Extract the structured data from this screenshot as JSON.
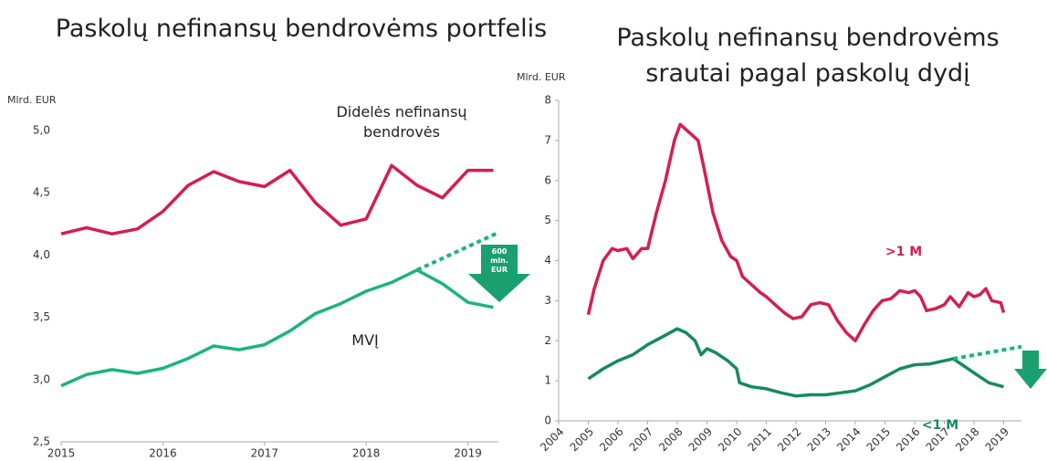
{
  "chart_data": [
    {
      "type": "line",
      "title": "Paskolų nefinansų bendrovėms portfelis",
      "y_label": "Mlrd. EUR",
      "xlim": [
        2015,
        2019.3
      ],
      "xticks": [
        2015,
        2016,
        2017,
        2018,
        2019
      ],
      "ylim": [
        2.5,
        5.0
      ],
      "yticks": [
        {
          "value": 2.5,
          "label": "2,5"
        },
        {
          "value": 3.0,
          "label": "3,0"
        },
        {
          "value": 3.5,
          "label": "3,5"
        },
        {
          "value": 4.0,
          "label": "4,0"
        },
        {
          "value": 4.5,
          "label": "4,5"
        },
        {
          "value": 5.0,
          "label": "5,0"
        }
      ],
      "series": [
        {
          "name": "Didelės nefinansų bendrovės",
          "color": "#d61c4e",
          "x": [
            2015,
            2015.25,
            2015.5,
            2015.75,
            2016,
            2016.25,
            2016.5,
            2016.75,
            2017,
            2017.25,
            2017.5,
            2017.75,
            2018,
            2018.25,
            2018.5,
            2018.75,
            2019,
            2019.25
          ],
          "values": [
            4.17,
            4.22,
            4.17,
            4.21,
            4.35,
            4.56,
            4.67,
            4.59,
            4.55,
            4.68,
            4.42,
            4.24,
            4.29,
            4.72,
            4.56,
            4.46,
            4.68,
            4.68
          ]
        },
        {
          "name": "MVĮ",
          "color": "#1db37e",
          "x": [
            2015,
            2015.25,
            2015.5,
            2015.75,
            2016,
            2016.25,
            2016.5,
            2016.75,
            2017,
            2017.25,
            2017.5,
            2017.75,
            2018,
            2018.25,
            2018.5,
            2018.75,
            2019,
            2019.25
          ],
          "values": [
            2.95,
            3.04,
            3.08,
            3.05,
            3.09,
            3.17,
            3.27,
            3.24,
            3.28,
            3.39,
            3.53,
            3.61,
            3.71,
            3.78,
            3.88,
            3.77,
            3.62,
            3.58
          ]
        },
        {
          "color": "#1db37e",
          "dashed": true,
          "x": [
            2018.5,
            2019.3
          ],
          "values": [
            3.88,
            4.18
          ]
        }
      ],
      "annotations": [
        "600 mln. EUR"
      ]
    },
    {
      "type": "line",
      "title": "Paskolų nefinansų bendrovėms srautai pagal paskolų dydį",
      "y_label": "Mlrd. EUR",
      "xlim": [
        2004,
        2019.6
      ],
      "xticks": [
        2004,
        2005,
        2006,
        2007,
        2008,
        2009,
        2010,
        2011,
        2012,
        2013,
        2014,
        2015,
        2016,
        2017,
        2018,
        2019
      ],
      "ylim": [
        0,
        8
      ],
      "yticks": [
        0,
        1,
        2,
        3,
        4,
        5,
        6,
        7,
        8
      ],
      "series": [
        {
          "name": ">1 M",
          "color": "#d2204f",
          "x": [
            2005.0,
            2005.2,
            2005.5,
            2005.8,
            2006.0,
            2006.3,
            2006.5,
            2006.8,
            2007.0,
            2007.3,
            2007.6,
            2007.9,
            2008.1,
            2008.4,
            2008.7,
            2008.9,
            2009.2,
            2009.5,
            2009.8,
            2010.0,
            2010.2,
            2010.5,
            2010.8,
            2011.0,
            2011.3,
            2011.6,
            2011.9,
            2012.2,
            2012.5,
            2012.8,
            2013.1,
            2013.4,
            2013.7,
            2014.0,
            2014.3,
            2014.6,
            2014.9,
            2015.2,
            2015.5,
            2015.8,
            2016.0,
            2016.2,
            2016.4,
            2016.7,
            2017.0,
            2017.2,
            2017.5,
            2017.8,
            2018.0,
            2018.2,
            2018.4,
            2018.6,
            2018.9,
            2019.0
          ],
          "values": [
            2.65,
            3.3,
            4.0,
            4.3,
            4.25,
            4.3,
            4.05,
            4.3,
            4.3,
            5.2,
            6.0,
            7.0,
            7.4,
            7.2,
            7.0,
            6.3,
            5.2,
            4.5,
            4.1,
            4.0,
            3.6,
            3.4,
            3.2,
            3.1,
            2.9,
            2.7,
            2.55,
            2.6,
            2.9,
            2.95,
            2.9,
            2.5,
            2.2,
            2.0,
            2.4,
            2.75,
            3.0,
            3.05,
            3.25,
            3.2,
            3.25,
            3.1,
            2.75,
            2.8,
            2.9,
            3.1,
            2.85,
            3.2,
            3.1,
            3.15,
            3.3,
            3.0,
            2.95,
            2.7
          ]
        },
        {
          "name": "<1 M",
          "color": "#168a5c",
          "x": [
            2005.0,
            2005.5,
            2006.0,
            2006.5,
            2007.0,
            2007.5,
            2008.0,
            2008.3,
            2008.6,
            2008.8,
            2009.0,
            2009.3,
            2009.7,
            2010.0,
            2010.1,
            2010.5,
            2011.0,
            2011.5,
            2012.0,
            2012.5,
            2013.0,
            2013.5,
            2014.0,
            2014.5,
            2015.0,
            2015.5,
            2016.0,
            2016.5,
            2017.0,
            2017.3,
            2017.6,
            2018.0,
            2018.5,
            2019.0
          ],
          "values": [
            1.05,
            1.3,
            1.5,
            1.65,
            1.9,
            2.1,
            2.3,
            2.2,
            2.0,
            1.65,
            1.8,
            1.7,
            1.5,
            1.3,
            0.95,
            0.85,
            0.8,
            0.7,
            0.62,
            0.65,
            0.65,
            0.7,
            0.75,
            0.9,
            1.1,
            1.3,
            1.4,
            1.42,
            1.5,
            1.55,
            1.4,
            1.2,
            0.95,
            0.85
          ]
        },
        {
          "color": "#1db37e",
          "dashed": true,
          "x": [
            2017.3,
            2019.6
          ],
          "values": [
            1.55,
            1.85
          ]
        }
      ]
    }
  ]
}
